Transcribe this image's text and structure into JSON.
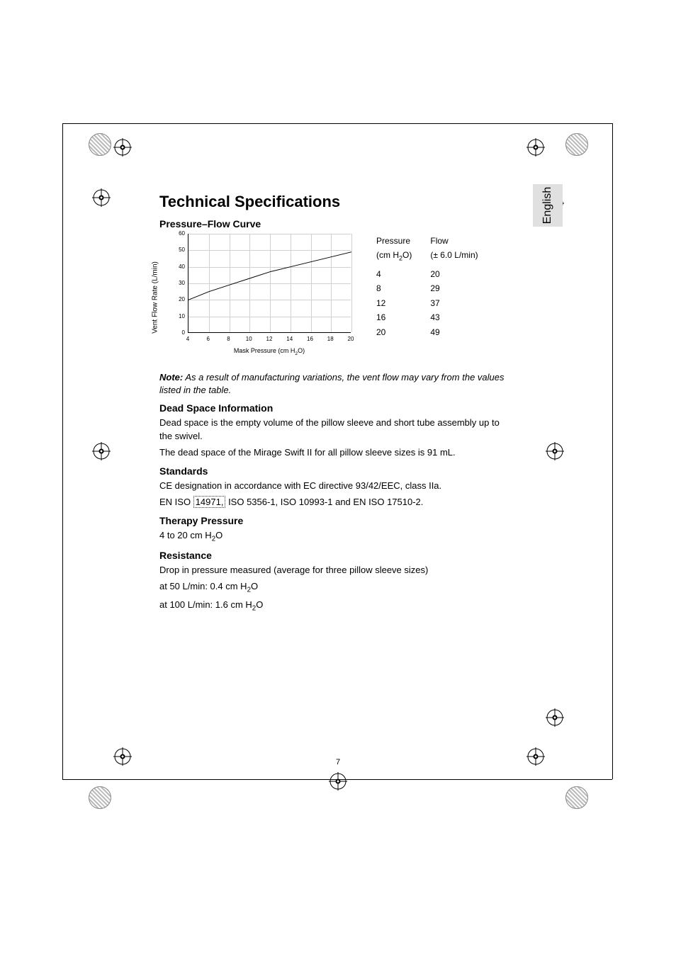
{
  "language_tab": "English",
  "page_number": "7",
  "h1": "Technical Specifications",
  "pf_heading": "Pressure–Flow Curve",
  "chart": {
    "type": "line",
    "x_values": [
      4,
      6,
      8,
      10,
      12,
      14,
      16,
      18,
      20
    ],
    "y_values": [
      20,
      25,
      29,
      33,
      37,
      40,
      43,
      46,
      49
    ],
    "xlim": [
      4,
      20
    ],
    "ylim": [
      0,
      60
    ],
    "xtick_positions": [
      4,
      6,
      8,
      10,
      12,
      14,
      16,
      18,
      20
    ],
    "ytick_positions": [
      0,
      10,
      20,
      30,
      40,
      50,
      60
    ],
    "line_color": "#000000",
    "line_width": 1,
    "grid_color": "#d0d0d0",
    "background_color": "#ffffff",
    "xlabel_prefix": "Mask Pressure (cm H",
    "xlabel_suffix": "O)",
    "ylabel": "Vent Flow Rate (L/min)",
    "label_fontsize": 9,
    "tick_fontsize": 8
  },
  "pf_table": {
    "col1_header_l1": "Pressure",
    "col1_header_l2_prefix": "(cm H",
    "col1_header_l2_suffix": "O)",
    "col2_header_l1": "Flow",
    "col2_header_l2": "(± 6.0 L/min)",
    "rows": [
      {
        "p": "4",
        "f": "20"
      },
      {
        "p": "8",
        "f": "29"
      },
      {
        "p": "12",
        "f": "37"
      },
      {
        "p": "16",
        "f": "43"
      },
      {
        "p": "20",
        "f": "49"
      }
    ]
  },
  "note_label": "Note:",
  "note_text": " As a result of manufacturing variations, the vent flow may vary from the values listed in the table.",
  "deadspace_heading": "Dead Space Information",
  "deadspace_p1": "Dead space is the empty volume of the pillow sleeve and short tube assembly up to the swivel.",
  "deadspace_p2": "The dead space of the Mirage Swift II for all pillow sleeve sizes is 91 mL.",
  "standards_heading": "Standards",
  "standards_p1": "CE designation in accordance with EC directive 93/42/EEC, class IIa.",
  "standards_p2_pre": "EN ISO ",
  "standards_p2_boxed": "14971,",
  "standards_p2_post": " ISO 5356-1, ISO 10993-1 and EN ISO 17510-2.",
  "therapy_heading": "Therapy Pressure",
  "therapy_prefix": "4 to 20 cm H",
  "therapy_suffix": "O",
  "resistance_heading": "Resistance",
  "resistance_p1": "Drop in pressure measured (average for three pillow sleeve sizes)",
  "resistance_p2_prefix": "at 50 L/min: 0.4 cm H",
  "resistance_p2_suffix": "O",
  "resistance_p3_prefix": "at 100 L/min: 1.6 cm H",
  "resistance_p3_suffix": "O"
}
